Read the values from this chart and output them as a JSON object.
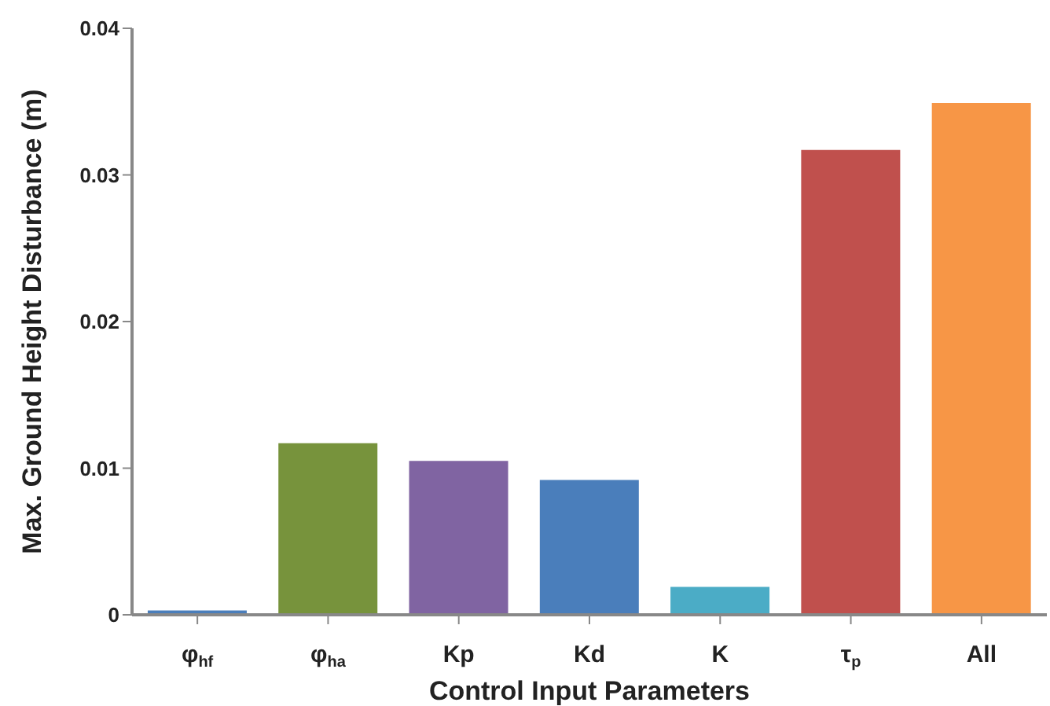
{
  "chart_data": {
    "type": "bar",
    "xlabel": "Control Input Parameters",
    "ylabel": "Max. Ground Height Disturbance (m)",
    "categories": [
      "φ$_{hf}$",
      "φ$_{ha}$",
      "Kp",
      "Kd",
      "K",
      "τ$_{p}$",
      "All"
    ],
    "values": [
      0.0003,
      0.0117,
      0.0105,
      0.0092,
      0.0019,
      0.0317,
      0.0349
    ],
    "colors": [
      "#4a7ebb",
      "#77933c",
      "#8064a2",
      "#4a7ebb",
      "#4bacc6",
      "#c0504d",
      "#f79646"
    ],
    "ylim": [
      0,
      0.04
    ],
    "yticks": [
      0,
      0.01,
      0.02,
      0.03,
      0.04
    ],
    "grid": false,
    "legend": false
  }
}
